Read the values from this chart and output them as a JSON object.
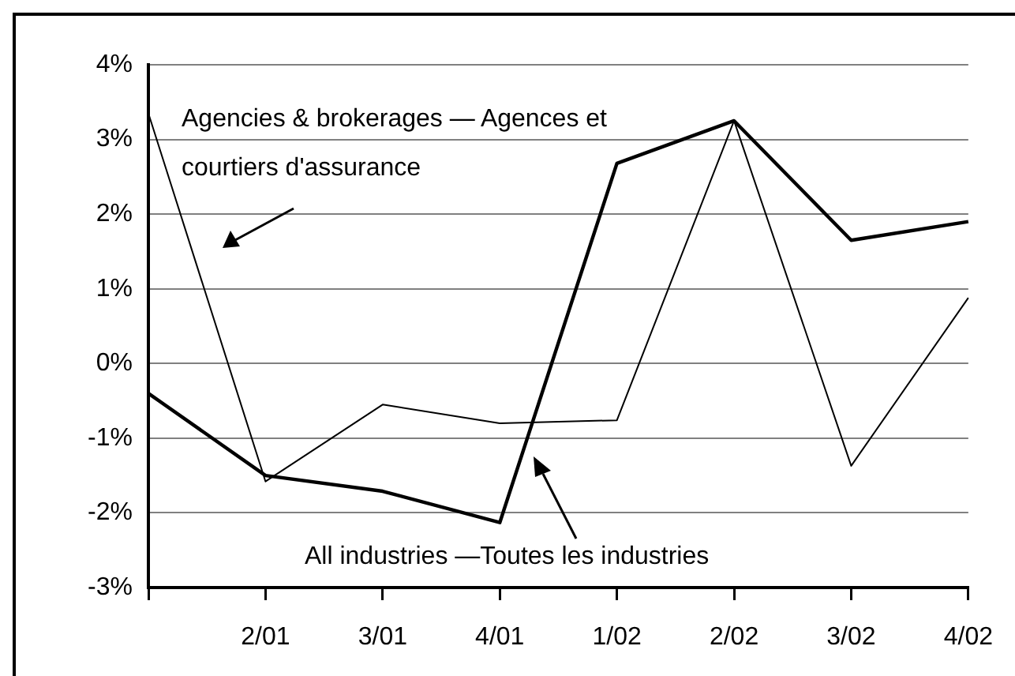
{
  "chart_data": {
    "type": "line",
    "categories": [
      null,
      "2/01",
      "3/01",
      "4/01",
      "1/02",
      "2/02",
      "3/02",
      "4/02"
    ],
    "series": [
      {
        "name": "Agencies & brokerages — Agences et courtiers d'assurance",
        "color": "#000000",
        "values": [
          3.35,
          -1.58,
          -0.55,
          -0.8,
          -0.76,
          3.25,
          -1.37,
          0.88
        ]
      },
      {
        "name": "All industries —Toutes les industries",
        "color": "#000000",
        "values": [
          -0.4,
          -1.5,
          -1.71,
          -2.13,
          2.68,
          3.25,
          1.65,
          1.9
        ]
      }
    ],
    "ylim": [
      -3,
      4
    ],
    "yticks": [
      {
        "value": -3,
        "label": "-3%"
      },
      {
        "value": -2,
        "label": "-2%"
      },
      {
        "value": -1,
        "label": "-1%"
      },
      {
        "value": 0,
        "label": "0%"
      },
      {
        "value": 1,
        "label": "1%"
      },
      {
        "value": 2,
        "label": "2%"
      },
      {
        "value": 3,
        "label": "3%"
      },
      {
        "value": 4,
        "label": "4%"
      }
    ],
    "grid": "y",
    "legend": false,
    "marker": "none",
    "line_style": "solid"
  }
}
